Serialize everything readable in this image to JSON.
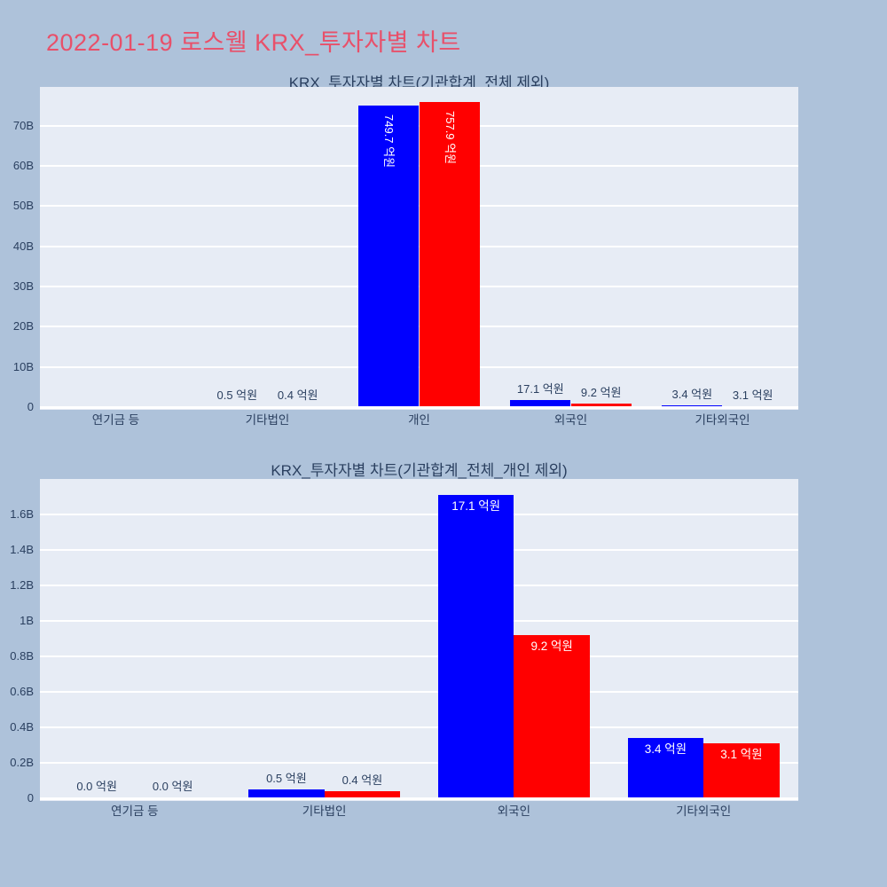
{
  "page": {
    "title": "2022-01-19 로스웰 KRX_투자자별 차트",
    "title_color": "#e8506a",
    "background_color": "#aec2da"
  },
  "colors": {
    "plot_background": "#e7ecf5",
    "gridline": "#ffffff",
    "axis_text": "#2a3f5f",
    "bar_blue": "#0000ff",
    "bar_red": "#ff0000",
    "label_inside_text": "#ffffff"
  },
  "chart_data": [
    {
      "type": "bar",
      "title": "KRX_투자자별 차트(기관합계_전체 제외)",
      "unit": "억원",
      "categories": [
        "연기금 등",
        "기타법인",
        "개인",
        "외국인",
        "기타외국인"
      ],
      "series": [
        {
          "name": "blue",
          "color": "#0000ff",
          "values": [
            0.0,
            0.5,
            749.7,
            17.1,
            3.4
          ],
          "labels": [
            "",
            "0.5 억원",
            "749.7 억원",
            "17.1 억원",
            "3.4 억원"
          ],
          "label_pos": [
            "none",
            "outside",
            "inside-vertical",
            "outside",
            "outside"
          ]
        },
        {
          "name": "red",
          "color": "#ff0000",
          "values": [
            0.0,
            0.4,
            757.9,
            9.2,
            3.1
          ],
          "labels": [
            "",
            "0.4 억원",
            "757.9 억원",
            "9.2 억원",
            "3.1 억원"
          ],
          "label_pos": [
            "none",
            "outside",
            "inside-vertical",
            "outside",
            "outside"
          ]
        }
      ],
      "yaxis": {
        "tick_labels": [
          "0",
          "10B",
          "20B",
          "30B",
          "40B",
          "50B",
          "60B",
          "70B"
        ],
        "tick_values_B": [
          0,
          10,
          20,
          30,
          40,
          50,
          60,
          70
        ],
        "range_B": [
          0,
          79.6
        ]
      },
      "grid": true,
      "legend": "none"
    },
    {
      "type": "bar",
      "title": "KRX_투자자별 차트(기관합계_전체_개인 제외)",
      "unit": "억원",
      "categories": [
        "연기금 등",
        "기타법인",
        "외국인",
        "기타외국인"
      ],
      "series": [
        {
          "name": "blue",
          "color": "#0000ff",
          "values": [
            0.0,
            0.5,
            17.1,
            3.4
          ],
          "labels": [
            "0.0 억원",
            "0.5 억원",
            "17.1 억원",
            "3.4 억원"
          ],
          "label_pos": [
            "outside",
            "outside",
            "inside",
            "inside"
          ]
        },
        {
          "name": "red",
          "color": "#ff0000",
          "values": [
            0.0,
            0.4,
            9.2,
            3.1
          ],
          "labels": [
            "0.0 억원",
            "0.4 억원",
            "9.2 억원",
            "3.1 억원"
          ],
          "label_pos": [
            "outside",
            "outside",
            "inside",
            "inside"
          ]
        }
      ],
      "yaxis": {
        "tick_labels": [
          "0",
          "0.2B",
          "0.4B",
          "0.6B",
          "0.8B",
          "1B",
          "1.2B",
          "1.4B",
          "1.6B"
        ],
        "tick_values_B": [
          0,
          0.2,
          0.4,
          0.6,
          0.8,
          1,
          1.2,
          1.4,
          1.6
        ],
        "range_B": [
          0,
          1.8
        ]
      },
      "grid": true,
      "legend": "none"
    }
  ]
}
